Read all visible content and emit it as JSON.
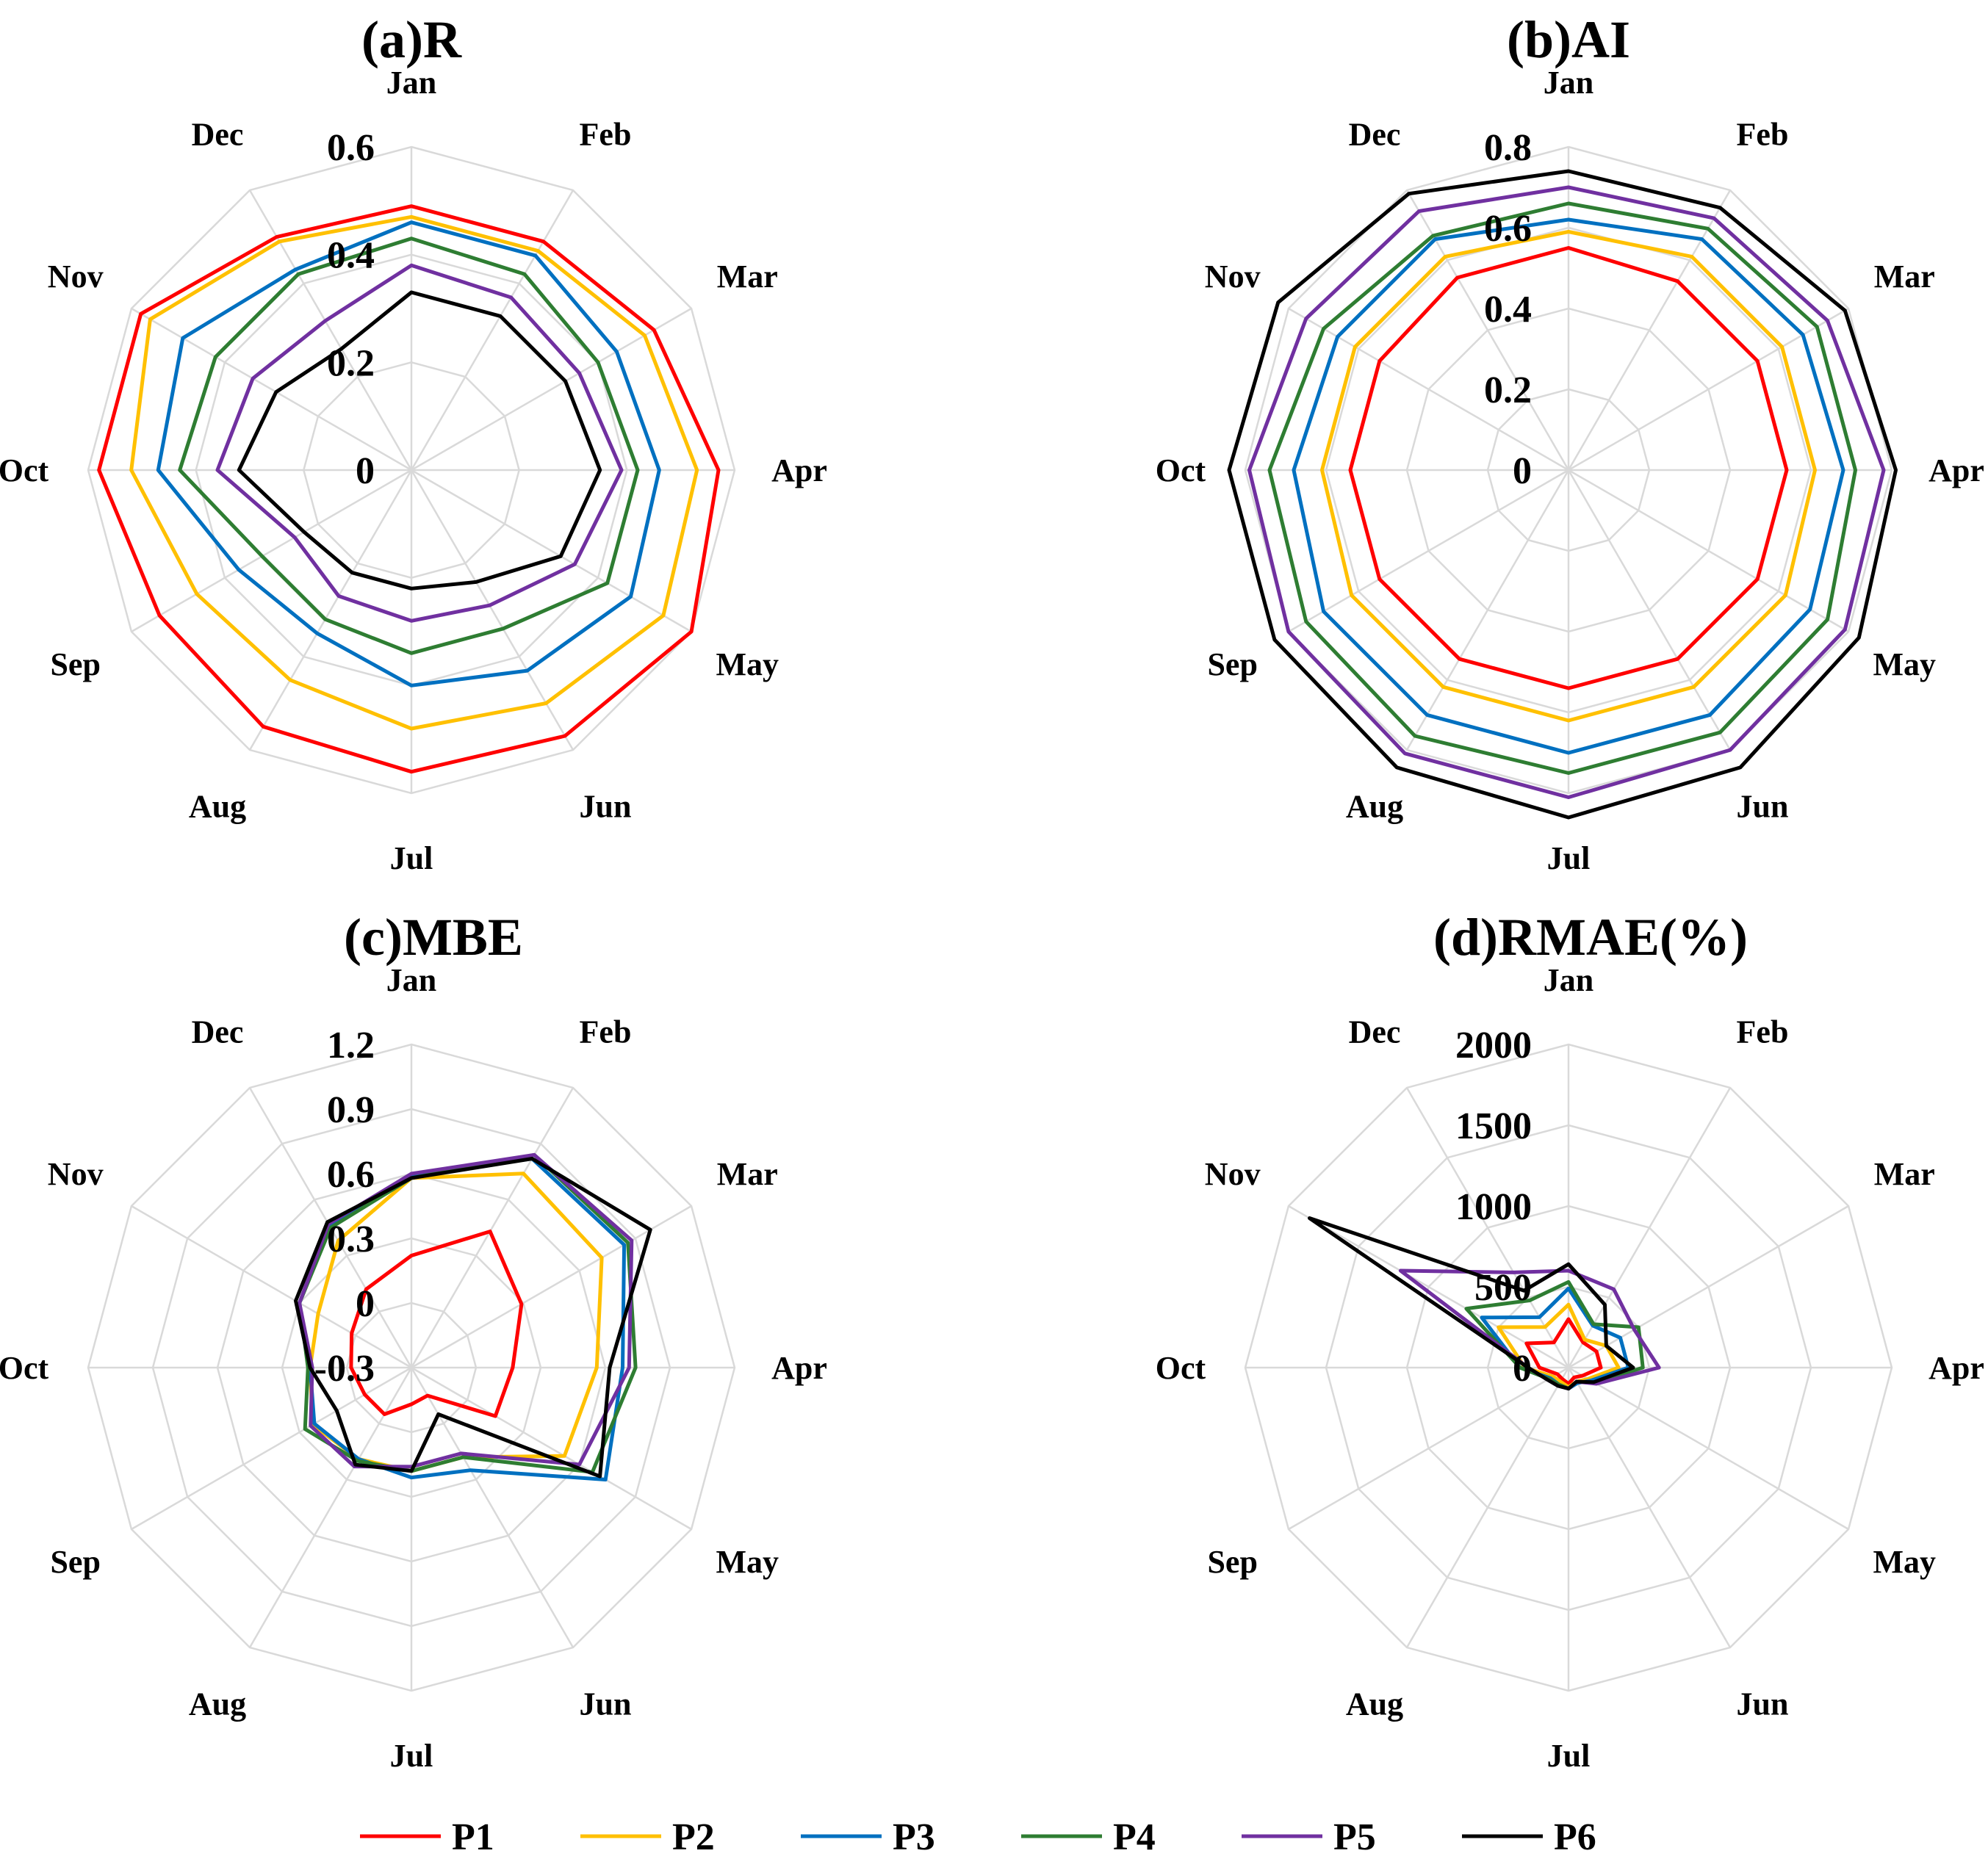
{
  "chart_data": [
    {
      "type": "radar",
      "title": "(a)R",
      "categories": [
        "Jan",
        "Feb",
        "Mar",
        "Apr",
        "May",
        "Jun",
        "Jul",
        "Aug",
        "Sep",
        "Oct",
        "Nov",
        "Dec"
      ],
      "rmin": 0,
      "rmax": 0.6,
      "ticks": [
        {
          "value": 0,
          "label": "0"
        },
        {
          "value": 0.2,
          "label": "0.2"
        },
        {
          "value": 0.4,
          "label": "0.4"
        },
        {
          "value": 0.6,
          "label": "0.6"
        }
      ],
      "series": [
        {
          "name": "P1",
          "color": "#ff0000",
          "values": [
            0.49,
            0.49,
            0.52,
            0.57,
            0.6,
            0.57,
            0.56,
            0.55,
            0.54,
            0.58,
            0.58,
            0.5
          ]
        },
        {
          "name": "P2",
          "color": "#ffc000",
          "values": [
            0.47,
            0.47,
            0.5,
            0.53,
            0.54,
            0.5,
            0.48,
            0.45,
            0.46,
            0.52,
            0.56,
            0.49
          ]
        },
        {
          "name": "P3",
          "color": "#0070c0",
          "values": [
            0.46,
            0.46,
            0.44,
            0.46,
            0.47,
            0.43,
            0.4,
            0.35,
            0.37,
            0.47,
            0.49,
            0.43
          ]
        },
        {
          "name": "P4",
          "color": "#2e7d32",
          "values": [
            0.43,
            0.42,
            0.4,
            0.42,
            0.42,
            0.34,
            0.34,
            0.32,
            0.32,
            0.43,
            0.42,
            0.42
          ]
        },
        {
          "name": "P5",
          "color": "#7030a0",
          "values": [
            0.38,
            0.37,
            0.36,
            0.39,
            0.35,
            0.29,
            0.28,
            0.27,
            0.25,
            0.36,
            0.34,
            0.32
          ]
        },
        {
          "name": "P6",
          "color": "#000000",
          "values": [
            0.33,
            0.33,
            0.33,
            0.35,
            0.32,
            0.24,
            0.22,
            0.22,
            0.23,
            0.32,
            0.29,
            0.26
          ]
        }
      ]
    },
    {
      "type": "radar",
      "title": "(b)AI",
      "categories": [
        "Jan",
        "Feb",
        "Mar",
        "Apr",
        "May",
        "Jun",
        "Jul",
        "Aug",
        "Sep",
        "Oct",
        "Nov",
        "Dec"
      ],
      "rmin": 0,
      "rmax": 0.8,
      "ticks": [
        {
          "value": 0,
          "label": "0"
        },
        {
          "value": 0.2,
          "label": "0.2"
        },
        {
          "value": 0.4,
          "label": "0.4"
        },
        {
          "value": 0.6,
          "label": "0.6"
        },
        {
          "value": 0.8,
          "label": "0.8"
        }
      ],
      "series": [
        {
          "name": "P1",
          "color": "#ff0000",
          "values": [
            0.55,
            0.54,
            0.54,
            0.54,
            0.54,
            0.54,
            0.54,
            0.54,
            0.54,
            0.54,
            0.54,
            0.55
          ]
        },
        {
          "name": "P2",
          "color": "#ffc000",
          "values": [
            0.59,
            0.61,
            0.61,
            0.61,
            0.62,
            0.62,
            0.62,
            0.62,
            0.62,
            0.61,
            0.61,
            0.61
          ]
        },
        {
          "name": "P3",
          "color": "#0070c0",
          "values": [
            0.62,
            0.66,
            0.67,
            0.68,
            0.69,
            0.7,
            0.7,
            0.7,
            0.7,
            0.68,
            0.66,
            0.66
          ]
        },
        {
          "name": "P4",
          "color": "#2e7d32",
          "values": [
            0.66,
            0.69,
            0.71,
            0.71,
            0.74,
            0.75,
            0.75,
            0.76,
            0.75,
            0.74,
            0.7,
            0.67
          ]
        },
        {
          "name": "P5",
          "color": "#7030a0",
          "values": [
            0.7,
            0.72,
            0.74,
            0.78,
            0.79,
            0.8,
            0.81,
            0.81,
            0.8,
            0.79,
            0.75,
            0.74
          ]
        },
        {
          "name": "P6",
          "color": "#000000",
          "values": [
            0.74,
            0.75,
            0.79,
            0.81,
            0.83,
            0.85,
            0.86,
            0.85,
            0.84,
            0.84,
            0.83,
            0.79
          ]
        }
      ]
    },
    {
      "type": "radar",
      "title": "(c)MBE",
      "categories": [
        "Jan",
        "Feb",
        "Mar",
        "Apr",
        "May",
        "Jun",
        "Jul",
        "Aug",
        "Sep",
        "Oct",
        "Nov",
        "Dec"
      ],
      "rmin": -0.3,
      "rmax": 1.2,
      "ticks": [
        {
          "value": -0.3,
          "label": "-0.3"
        },
        {
          "value": 0,
          "label": "0"
        },
        {
          "value": 0.3,
          "label": "0.3"
        },
        {
          "value": 0.6,
          "label": "0.6"
        },
        {
          "value": 0.9,
          "label": "0.9"
        },
        {
          "value": 1.2,
          "label": "1.2"
        }
      ],
      "series": [
        {
          "name": "P1",
          "color": "#ff0000",
          "values": [
            0.22,
            0.43,
            0.29,
            0.17,
            0.15,
            -0.15,
            -0.13,
            -0.05,
            -0.05,
            -0.02,
            0.02,
            0.12
          ]
        },
        {
          "name": "P2",
          "color": "#ffc000",
          "values": [
            0.58,
            0.74,
            0.72,
            0.56,
            0.52,
            0.18,
            0.18,
            0.19,
            0.23,
            0.17,
            0.2,
            0.38
          ]
        },
        {
          "name": "P3",
          "color": "#0070c0",
          "values": [
            0.59,
            0.82,
            0.84,
            0.68,
            0.74,
            0.25,
            0.21,
            0.19,
            0.22,
            0.17,
            0.3,
            0.46
          ]
        },
        {
          "name": "P4",
          "color": "#2e7d32",
          "values": [
            0.58,
            0.84,
            0.86,
            0.74,
            0.67,
            0.18,
            0.18,
            0.2,
            0.27,
            0.18,
            0.3,
            0.45
          ]
        },
        {
          "name": "P5",
          "color": "#7030a0",
          "values": [
            0.6,
            0.84,
            0.88,
            0.71,
            0.6,
            0.16,
            0.16,
            0.23,
            0.24,
            0.16,
            0.3,
            0.47
          ]
        },
        {
          "name": "P6",
          "color": "#000000",
          "values": [
            0.58,
            0.82,
            0.98,
            0.62,
            0.71,
            -0.05,
            0.18,
            0.22,
            0.1,
            0.17,
            0.32,
            0.48
          ]
        }
      ]
    },
    {
      "type": "radar",
      "title": "(d)RMAE(%)",
      "categories": [
        "Jan",
        "Feb",
        "Mar",
        "Apr",
        "May",
        "Jun",
        "Jul",
        "Aug",
        "Sep",
        "Oct",
        "Nov",
        "Dec"
      ],
      "rmin": 0,
      "rmax": 2000,
      "ticks": [
        {
          "value": 0,
          "label": "0"
        },
        {
          "value": 500,
          "label": "500"
        },
        {
          "value": 1000,
          "label": "1000"
        },
        {
          "value": 1500,
          "label": "1500"
        },
        {
          "value": 2000,
          "label": "2000"
        }
      ],
      "series": [
        {
          "name": "P1",
          "color": "#ff0000",
          "values": [
            300,
            180,
            200,
            200,
            100,
            70,
            100,
            80,
            80,
            180,
            300,
            180
          ]
        },
        {
          "name": "P2",
          "color": "#ffc000",
          "values": [
            390,
            200,
            270,
            310,
            140,
            100,
            120,
            100,
            110,
            270,
            500,
            290
          ]
        },
        {
          "name": "P3",
          "color": "#0070c0",
          "values": [
            490,
            300,
            370,
            370,
            160,
            110,
            130,
            120,
            130,
            300,
            620,
            360
          ]
        },
        {
          "name": "P4",
          "color": "#2e7d32",
          "values": [
            530,
            310,
            500,
            460,
            190,
            100,
            130,
            120,
            140,
            300,
            730,
            480
          ]
        },
        {
          "name": "P5",
          "color": "#7030a0",
          "values": [
            600,
            560,
            470,
            560,
            200,
            100,
            130,
            130,
            150,
            250,
            1200,
            680
          ]
        },
        {
          "name": "P6",
          "color": "#000000",
          "values": [
            640,
            450,
            270,
            400,
            180,
            100,
            130,
            130,
            150,
            250,
            1850,
            550
          ]
        }
      ]
    }
  ],
  "legend": [
    {
      "name": "P1",
      "color": "#ff0000"
    },
    {
      "name": "P2",
      "color": "#ffc000"
    },
    {
      "name": "P3",
      "color": "#0070c0"
    },
    {
      "name": "P4",
      "color": "#2e7d32"
    },
    {
      "name": "P5",
      "color": "#7030a0"
    },
    {
      "name": "P6",
      "color": "#000000"
    }
  ]
}
